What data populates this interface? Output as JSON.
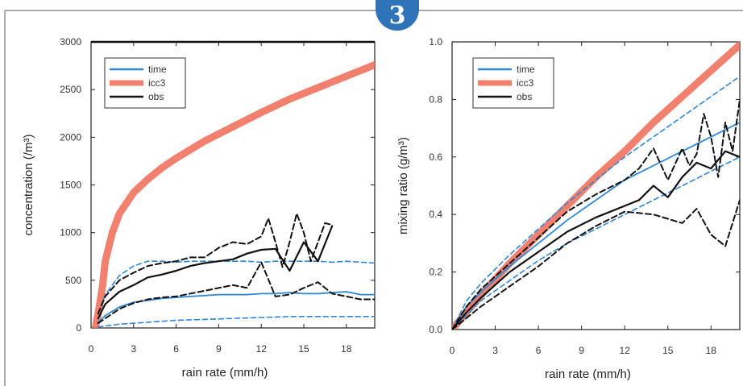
{
  "badge": {
    "label": "3"
  },
  "colors": {
    "blue": "#2e86d6",
    "red": "#ef6a55",
    "black": "#111111"
  },
  "chart_data": [
    {
      "type": "line",
      "xlabel": "rain rate (mm/h)",
      "ylabel": "concentration (/m³)",
      "xlim": [
        0,
        20
      ],
      "ylim": [
        0,
        3000
      ],
      "xticks": [
        "0",
        "3",
        "6",
        "9",
        "12",
        "15",
        "18"
      ],
      "yticks": [
        "0",
        "500",
        "1000",
        "1500",
        "2000",
        "2500",
        "3000"
      ],
      "legend": [
        "time",
        "icc3",
        "obs"
      ],
      "legend_position": "top-left",
      "series": [
        {
          "name": "icc3",
          "style": "thick-red",
          "x": [
            0.3,
            0.5,
            0.8,
            1,
            1.5,
            2,
            3,
            4,
            5,
            6,
            8,
            10,
            12,
            14,
            16,
            18,
            20
          ],
          "y": [
            0,
            150,
            430,
            700,
            1000,
            1200,
            1420,
            1560,
            1680,
            1780,
            1960,
            2110,
            2260,
            2400,
            2520,
            2640,
            2760
          ]
        },
        {
          "name": "obs-mean",
          "style": "black",
          "x": [
            0.5,
            1,
            2,
            3,
            4,
            5,
            6,
            7,
            8,
            9,
            10,
            11,
            12,
            13,
            14,
            15,
            16,
            17
          ],
          "y": [
            100,
            250,
            380,
            450,
            530,
            560,
            600,
            650,
            680,
            700,
            720,
            780,
            820,
            830,
            600,
            900,
            700,
            1070
          ]
        },
        {
          "name": "obs-upper",
          "style": "black-dashed",
          "x": [
            0.5,
            1,
            2,
            3,
            4,
            5,
            6,
            7,
            8,
            9,
            10,
            11,
            12,
            12.5,
            13,
            13.5,
            14,
            14.5,
            15,
            15.5,
            16,
            16.5,
            17
          ],
          "y": [
            150,
            330,
            500,
            580,
            650,
            680,
            700,
            740,
            740,
            840,
            900,
            880,
            960,
            1150,
            900,
            640,
            900,
            1200,
            1000,
            700,
            900,
            1100,
            1080
          ]
        },
        {
          "name": "obs-lower",
          "style": "black-dashed",
          "x": [
            0.5,
            1,
            2,
            3,
            4,
            5,
            6,
            7,
            8,
            9,
            10,
            11,
            12,
            13,
            14,
            15,
            16,
            17,
            18,
            19,
            20
          ],
          "y": [
            50,
            100,
            200,
            260,
            300,
            320,
            330,
            360,
            390,
            420,
            450,
            420,
            690,
            330,
            350,
            420,
            480,
            360,
            330,
            300,
            300
          ]
        },
        {
          "name": "time-mean",
          "style": "blue",
          "x": [
            0.5,
            1,
            2,
            3,
            4,
            5,
            6,
            7,
            8,
            9,
            10,
            11,
            12,
            13,
            14,
            15,
            16,
            17,
            18,
            19,
            20
          ],
          "y": [
            60,
            130,
            220,
            270,
            290,
            310,
            320,
            330,
            340,
            350,
            350,
            350,
            360,
            360,
            370,
            360,
            360,
            370,
            380,
            350,
            350
          ]
        },
        {
          "name": "time-upper",
          "style": "blue-dashed",
          "x": [
            0.5,
            1,
            2,
            3,
            4,
            5,
            6,
            7,
            8,
            9,
            10,
            11,
            12,
            13,
            14,
            15,
            16,
            17,
            18,
            19,
            20
          ],
          "y": [
            150,
            350,
            550,
            650,
            700,
            700,
            690,
            700,
            700,
            700,
            700,
            700,
            690,
            700,
            700,
            700,
            700,
            690,
            700,
            690,
            680
          ]
        },
        {
          "name": "time-lower",
          "style": "blue-dashed",
          "x": [
            0.5,
            1,
            2,
            4,
            6,
            8,
            10,
            12,
            14,
            16,
            18,
            20
          ],
          "y": [
            10,
            20,
            40,
            60,
            80,
            90,
            100,
            110,
            120,
            120,
            120,
            120
          ]
        }
      ]
    },
    {
      "type": "line",
      "xlabel": "rain rate (mm/h)",
      "ylabel": "mixing ratio (g/m³)",
      "xlim": [
        0,
        20
      ],
      "ylim": [
        0,
        1
      ],
      "xticks": [
        "0",
        "3",
        "6",
        "9",
        "12",
        "15",
        "18"
      ],
      "yticks": [
        "0.0",
        "0.2",
        "0.4",
        "0.6",
        "0.8",
        "1.0"
      ],
      "legend": [
        "time",
        "icc3",
        "obs"
      ],
      "legend_position": "top-left",
      "series": [
        {
          "name": "icc3",
          "style": "thick-red",
          "x": [
            0,
            2,
            4,
            6,
            8,
            10,
            12,
            14,
            16,
            18,
            20
          ],
          "y": [
            0,
            0.12,
            0.23,
            0.33,
            0.43,
            0.53,
            0.62,
            0.72,
            0.81,
            0.9,
            0.99
          ]
        },
        {
          "name": "obs-mean",
          "style": "black",
          "x": [
            0,
            1,
            2,
            4,
            6,
            8,
            10,
            12,
            13,
            14,
            15,
            16,
            17,
            18,
            19,
            20
          ],
          "y": [
            0,
            0.06,
            0.11,
            0.2,
            0.27,
            0.34,
            0.39,
            0.43,
            0.45,
            0.5,
            0.46,
            0.53,
            0.58,
            0.56,
            0.62,
            0.6
          ]
        },
        {
          "name": "obs-upper",
          "style": "black-dashed",
          "x": [
            0,
            1,
            2,
            4,
            6,
            8,
            10,
            12,
            13,
            14,
            15,
            16,
            16.5,
            17,
            17.5,
            18,
            18.5,
            19,
            19.5,
            20
          ],
          "y": [
            0,
            0.08,
            0.14,
            0.23,
            0.32,
            0.41,
            0.47,
            0.52,
            0.56,
            0.63,
            0.52,
            0.63,
            0.57,
            0.61,
            0.75,
            0.67,
            0.53,
            0.72,
            0.62,
            0.8
          ]
        },
        {
          "name": "obs-lower",
          "style": "black-dashed",
          "x": [
            0,
            1,
            2,
            4,
            6,
            8,
            10,
            12,
            14,
            16,
            17,
            18,
            19,
            20
          ],
          "y": [
            0,
            0.04,
            0.08,
            0.15,
            0.22,
            0.3,
            0.36,
            0.41,
            0.4,
            0.37,
            0.42,
            0.33,
            0.29,
            0.45
          ]
        },
        {
          "name": "time-mean",
          "style": "blue",
          "x": [
            0,
            1,
            2,
            4,
            6,
            8,
            10,
            12,
            14,
            16,
            18,
            20
          ],
          "y": [
            0,
            0.08,
            0.13,
            0.22,
            0.3,
            0.38,
            0.45,
            0.52,
            0.57,
            0.62,
            0.67,
            0.72
          ]
        },
        {
          "name": "time-upper",
          "style": "blue-dashed",
          "x": [
            0,
            1,
            2,
            4,
            6,
            8,
            10,
            12,
            14,
            16,
            18,
            20
          ],
          "y": [
            0,
            0.1,
            0.16,
            0.26,
            0.35,
            0.44,
            0.52,
            0.6,
            0.67,
            0.74,
            0.81,
            0.88
          ]
        },
        {
          "name": "time-lower",
          "style": "blue-dashed",
          "x": [
            0,
            1,
            2,
            4,
            6,
            8,
            10,
            12,
            14,
            16,
            18,
            20
          ],
          "y": [
            0,
            0.05,
            0.1,
            0.17,
            0.24,
            0.3,
            0.35,
            0.4,
            0.45,
            0.5,
            0.55,
            0.6
          ]
        }
      ]
    }
  ]
}
